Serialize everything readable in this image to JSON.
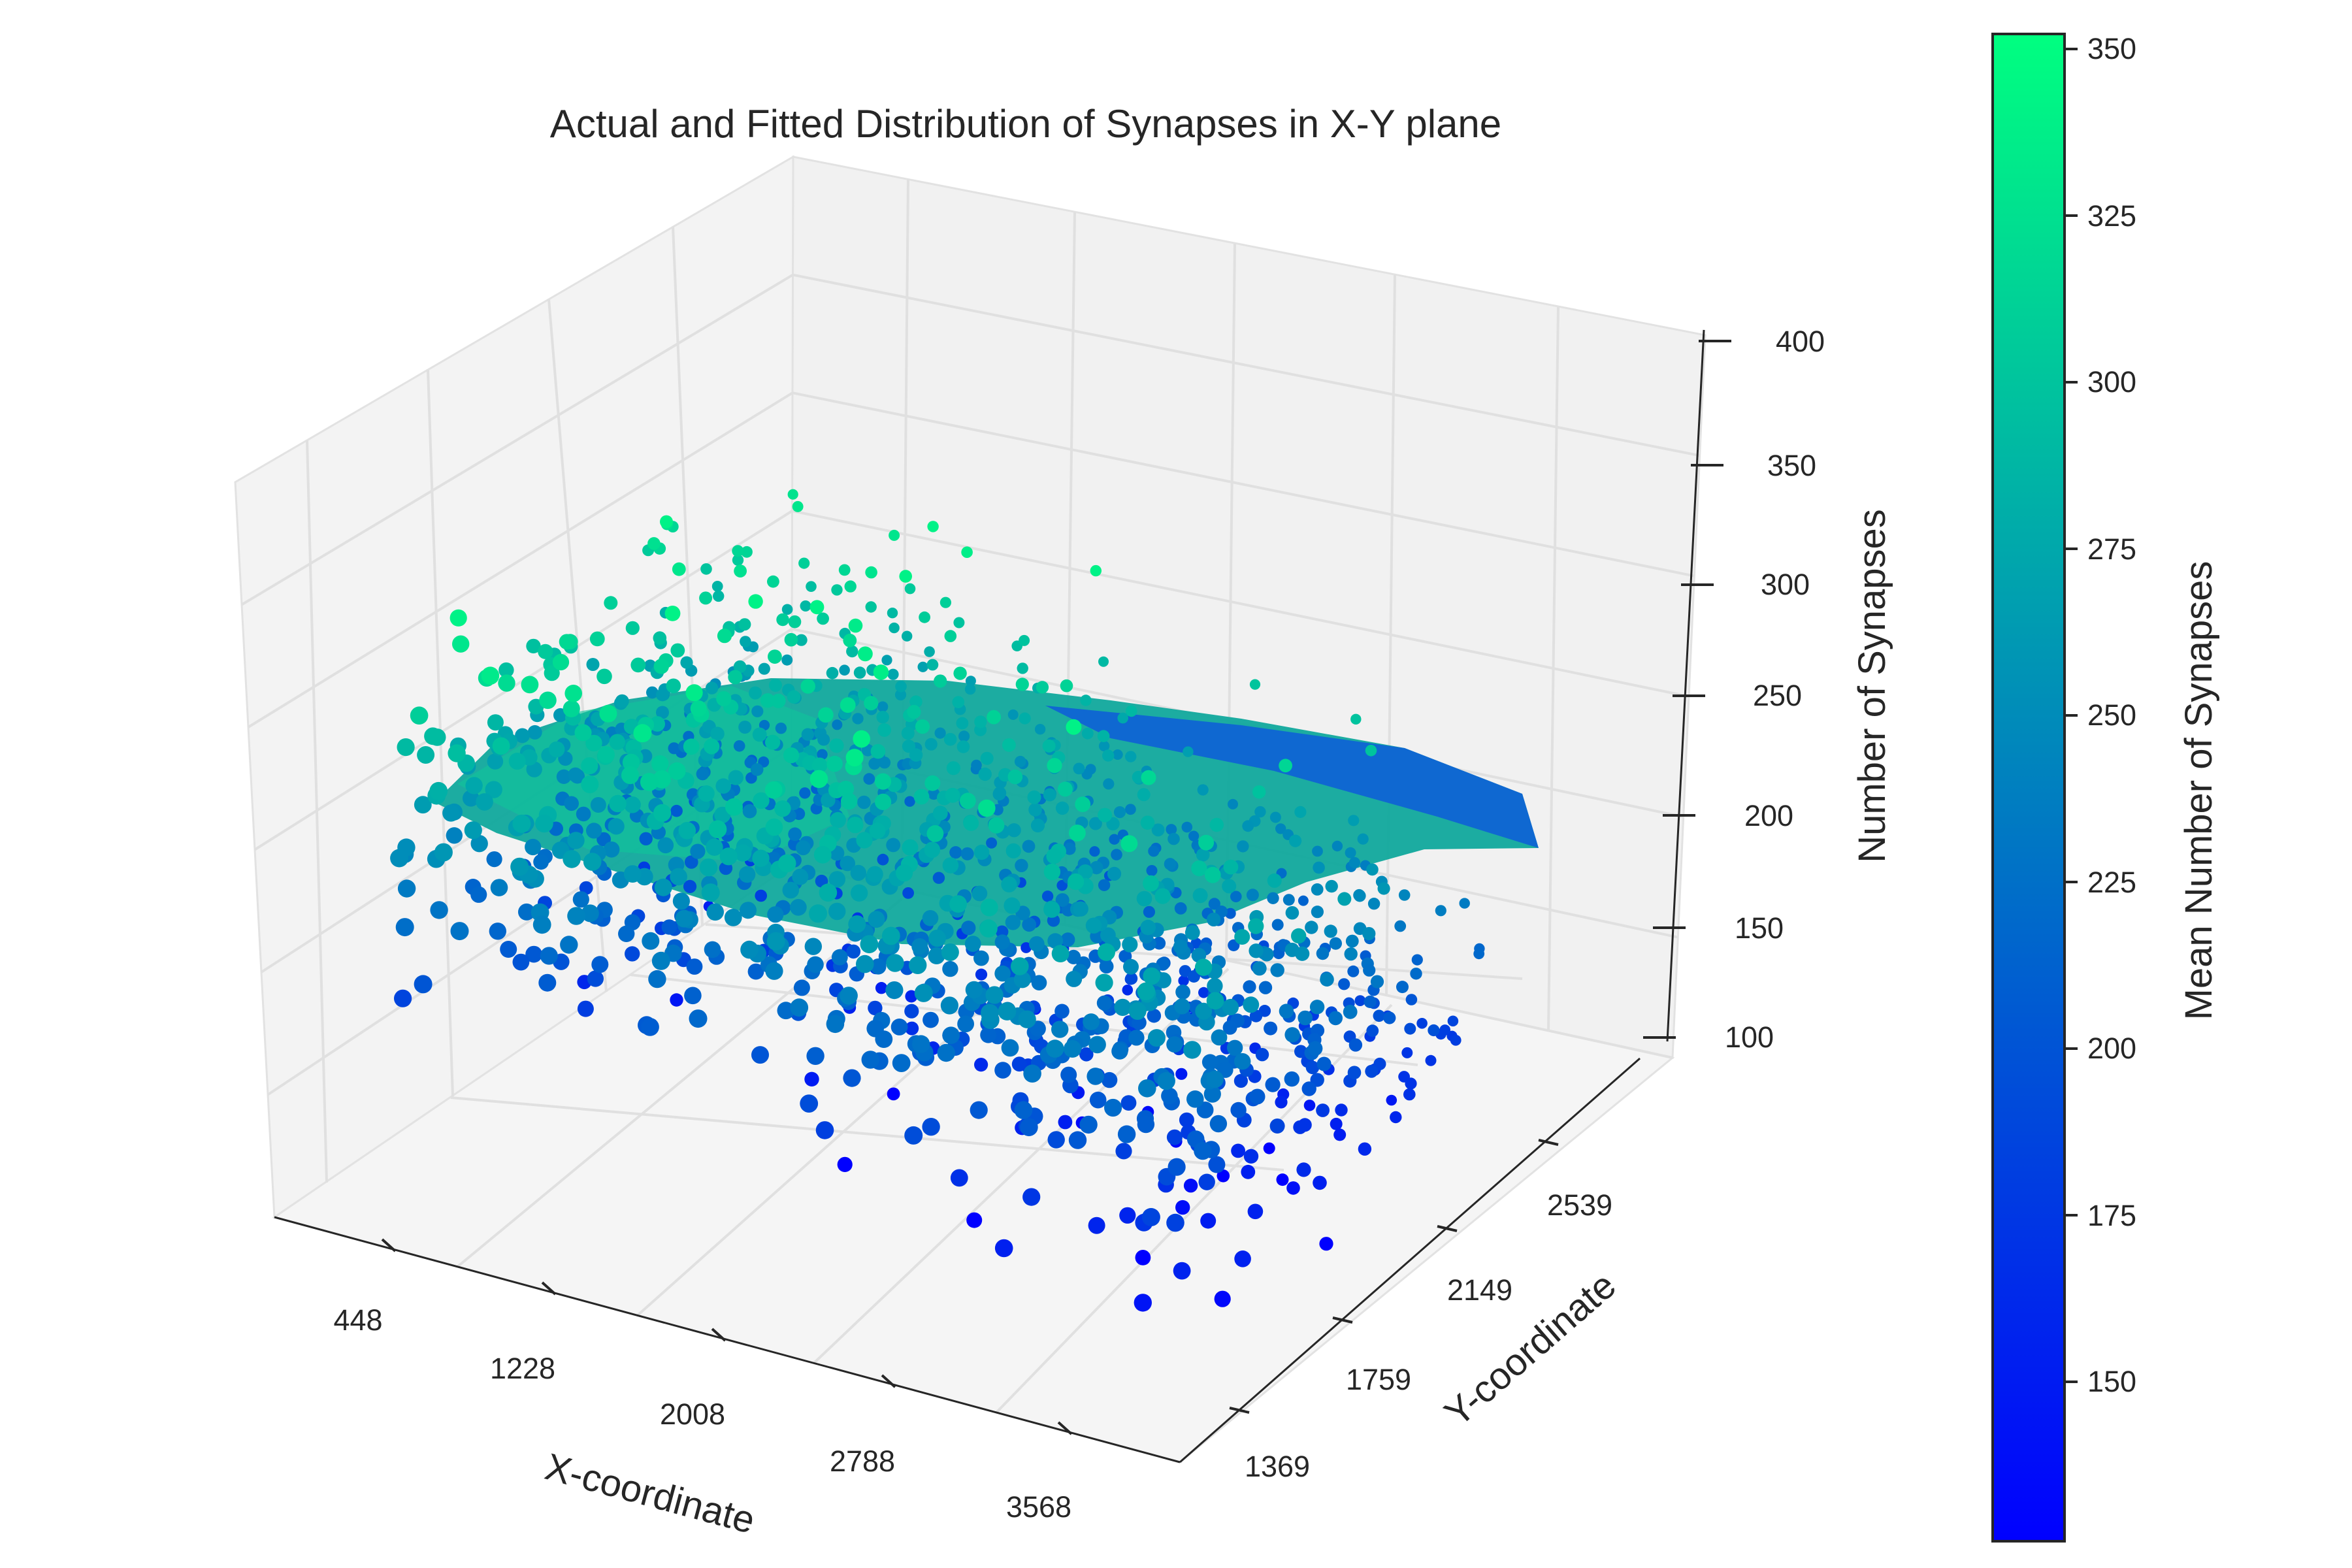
{
  "chart_data": {
    "type": "scatter",
    "subtype": "3d-scatter-with-fitted-surface",
    "title": "Actual and Fitted Distribution of Synapses in X-Y plane",
    "xlabel": "X-coordinate",
    "ylabel": "Y-coordinate",
    "zlabel": "Number of Synapses",
    "x_ticks": [
      "448",
      "1228",
      "2008",
      "2788",
      "3568"
    ],
    "y_ticks": [
      "1369",
      "1759",
      "2149",
      "2539"
    ],
    "z_ticks": [
      "100",
      "150",
      "200",
      "250",
      "300",
      "350",
      "400"
    ],
    "xlim": [
      0,
      3900
    ],
    "ylim": [
      1100,
      2900
    ],
    "zlim": [
      100,
      400
    ],
    "grid": true,
    "colormap": "winter",
    "colorbar": {
      "label": "Mean Number of Synapses",
      "ticks": [
        "150",
        "175",
        "200",
        "225",
        "250",
        "275",
        "300",
        "325",
        "350"
      ],
      "range": [
        125,
        352
      ],
      "color_low": "#0000ff",
      "color_high": "#00ff80"
    },
    "series": [
      {
        "type": "scatter",
        "x_range": [
          250,
          3750
        ],
        "y_range": [
          1250,
          2750
        ],
        "z_range": [
          125,
          340
        ],
        "approx_point_count": 1400
      },
      {
        "type": "surface",
        "x_range": [
          150,
          3700
        ],
        "y_range": [
          1300,
          2700
        ],
        "z_range": [
          180,
          300
        ]
      }
    ]
  }
}
